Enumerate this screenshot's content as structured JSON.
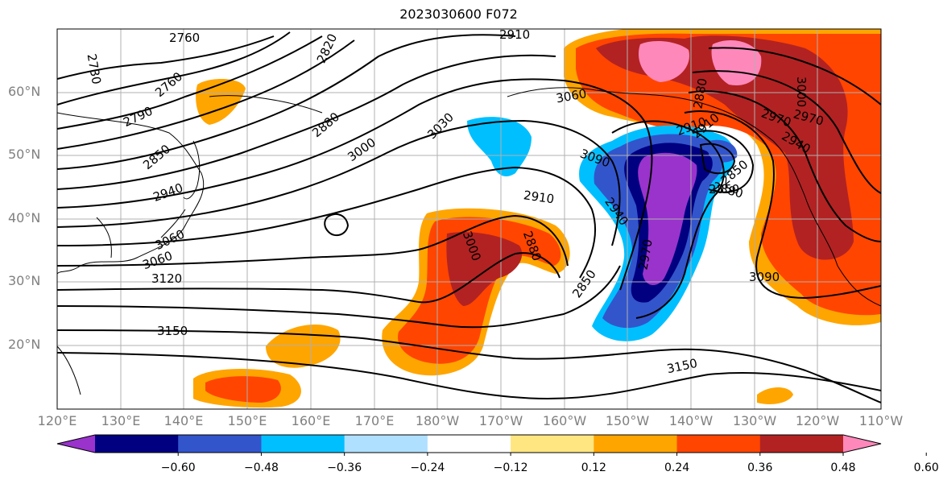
{
  "title": "2023030600 F072",
  "lat_labels": [
    "60°N",
    "50°N",
    "40°N",
    "30°N",
    "20°N"
  ],
  "lon_labels": [
    "120°E",
    "130°E",
    "140°E",
    "150°E",
    "160°E",
    "170°E",
    "180°W",
    "170°W",
    "160°W",
    "150°W",
    "140°W",
    "130°W",
    "120°W",
    "110°W"
  ],
  "colorbar": {
    "colors": [
      "#9933cc",
      "#000080",
      "#3355cc",
      "#00bfff",
      "#b0e0ff",
      "#ffffff",
      "#ffe680",
      "#ffa500",
      "#ff4500",
      "#b22222",
      "#ff88bb"
    ],
    "tick_labels": [
      "−0.60",
      "−0.48",
      "−0.36",
      "−0.24",
      "−0.12",
      "0.12",
      "0.24",
      "0.36",
      "0.48",
      "0.60"
    ]
  },
  "contour_labels": [
    "2730",
    "2760",
    "2790",
    "2820",
    "2850",
    "2880",
    "2910",
    "2940",
    "2970",
    "3000",
    "3030",
    "3060",
    "3090",
    "3120",
    "3150",
    "2760",
    "2910",
    "2880",
    "2850",
    "2940",
    "2970",
    "3000",
    "3060",
    "2910",
    "2880",
    "3000",
    "2940",
    "2850",
    "2910",
    "2880",
    "2970",
    "3090",
    "3150",
    "2850",
    "3060"
  ]
}
